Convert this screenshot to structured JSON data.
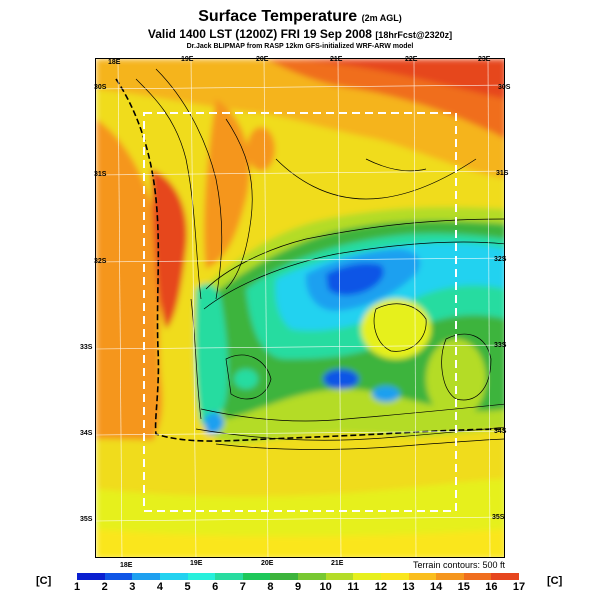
{
  "header": {
    "title": "Surface Temperature",
    "title_suffix": "(2m AGL)",
    "valid": "Valid 1400 LST (1200Z) FRI 19 Sep 2008",
    "forecast": "[18hrFcst@2320z]",
    "credit": "Dr.Jack BLIPMAP from RASP 12km GFS-initialized WRF-ARW model"
  },
  "map": {
    "lon_labels_top": [
      "18E",
      "19E",
      "20E",
      "21E",
      "22E",
      "23E"
    ],
    "lon_labels_bottom": [
      "18E",
      "19E",
      "20E",
      "21E"
    ],
    "lat_labels_left": [
      "30S",
      "31S",
      "32S",
      "33S",
      "34S",
      "35S"
    ],
    "lat_labels_right": [
      "30S",
      "31S",
      "32S",
      "33S",
      "34S",
      "35S"
    ],
    "terrain_note": "Terrain contours: 500 ft"
  },
  "colorbar": {
    "unit_left": "[C]",
    "unit_right": "[C]",
    "ticks": [
      "1",
      "2",
      "3",
      "4",
      "5",
      "6",
      "7",
      "8",
      "9",
      "10",
      "11",
      "12",
      "13",
      "14",
      "15",
      "16",
      "17"
    ],
    "colors": [
      "#0a1fd0",
      "#0f55e6",
      "#1ea0f0",
      "#23d2f0",
      "#28f0dc",
      "#28dca0",
      "#1ec85a",
      "#3cb43c",
      "#78c832",
      "#b4dc28",
      "#e6f01e",
      "#fae61e",
      "#fabe1e",
      "#f5961e",
      "#f06e1e",
      "#e6461e"
    ]
  }
}
